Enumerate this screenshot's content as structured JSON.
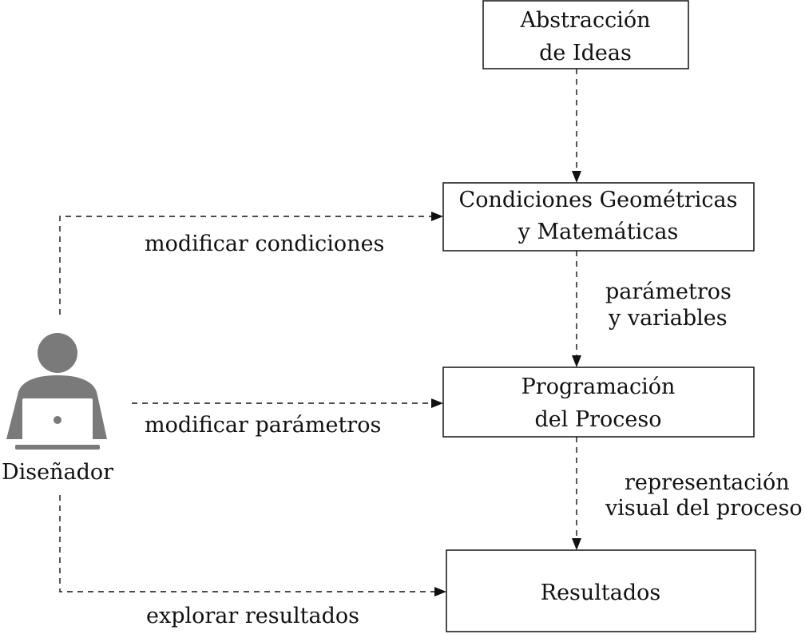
{
  "nodes": {
    "abstraction": {
      "line1": "Abstracción",
      "line2": "de Ideas"
    },
    "conditions": {
      "line1": "Condiciones Geométricas",
      "line2": "y Matemáticas"
    },
    "programming": {
      "line1": "Programación",
      "line2": "del Proceso"
    },
    "results": {
      "line1": "Resultados"
    }
  },
  "edge_labels": {
    "params_vars": {
      "line1": "parámetros",
      "line2": "y variables"
    },
    "visual_process": {
      "line1": "representación",
      "line2": "visual del proceso"
    },
    "modify_conditions": "modificar condiciones",
    "modify_parameters": "modificar parámetros",
    "explore_results": "explorar resultados"
  },
  "actor": {
    "label": "Diseñador",
    "icon": "user-with-laptop-icon"
  }
}
